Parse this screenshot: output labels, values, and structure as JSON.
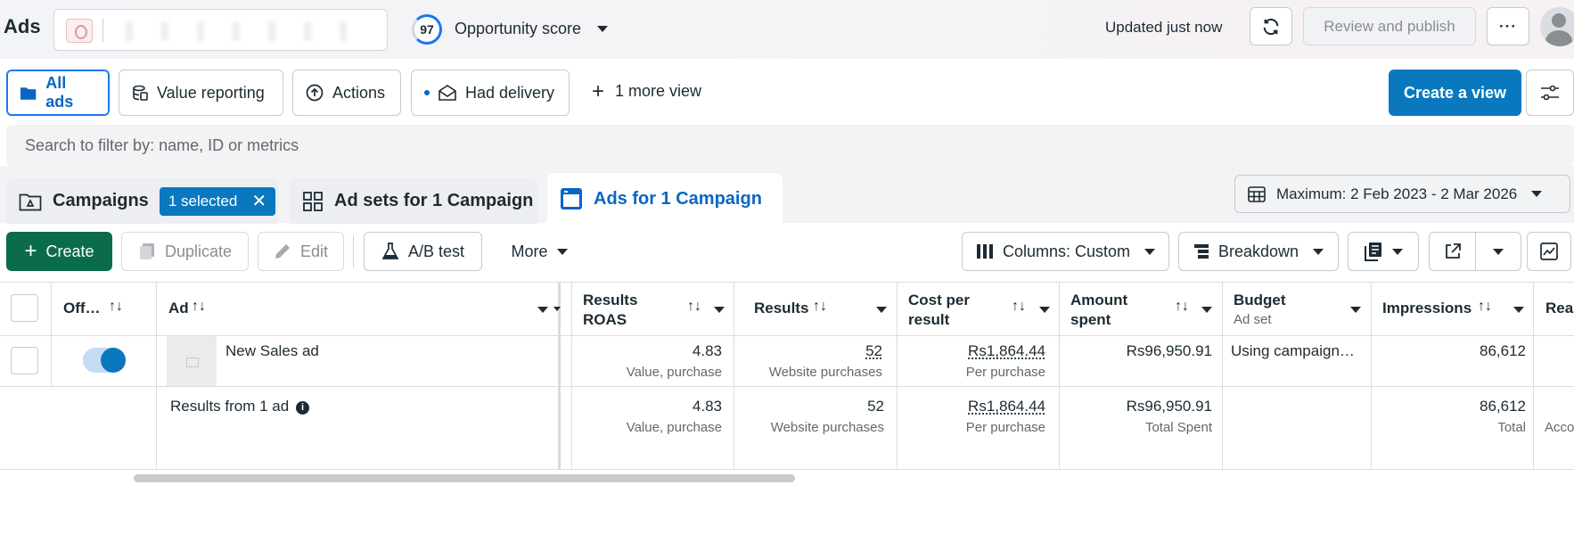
{
  "header": {
    "app_title": "Ads",
    "opportunity_score": "97",
    "opportunity_label": "Opportunity score",
    "updated": "Updated just now",
    "review_publish": "Review and publish",
    "more": "···"
  },
  "views": {
    "items": [
      "All ads",
      "Value reporting",
      "Actions",
      "Had delivery"
    ],
    "more_view": "1 more view",
    "create_view": "Create a view"
  },
  "search": {
    "placeholder": "Search to filter by: name, ID or metrics"
  },
  "levels": {
    "campaigns": "Campaigns",
    "selected_badge": "1 selected",
    "ad_sets": "Ad sets for 1 Campaign",
    "ads": "Ads for 1 Campaign"
  },
  "date_range": "Maximum: 2 Feb 2023 - 2 Mar 2026",
  "toolbar": {
    "create": "Create",
    "duplicate": "Duplicate",
    "edit": "Edit",
    "ab_test": "A/B test",
    "more": "More",
    "columns": "Columns: Custom",
    "breakdown": "Breakdown"
  },
  "table": {
    "headers": {
      "off_on": "Off…",
      "ad": "Ad",
      "results_roas_1": "Results",
      "results_roas_2": "ROAS",
      "results": "Results",
      "cost_per_result_1": "Cost per",
      "cost_per_result_2": "result",
      "amount_spent_1": "Amount",
      "amount_spent_2": "spent",
      "budget": "Budget",
      "budget_sub": "Ad set",
      "impressions": "Impressions",
      "reach": "Rea"
    },
    "row": {
      "ad_name": "New Sales ad",
      "roas": "4.83",
      "roas_sub": "Value, purchase",
      "results": "52",
      "results_sub": "Website purchases",
      "cost": "Rs1,864.44",
      "cost_sub": "Per purchase",
      "spent": "Rs96,950.91",
      "budget": "Using campaign…",
      "impressions": "86,612",
      "enabled": true
    },
    "summary": {
      "label": "Results from 1 ad",
      "roas": "4.83",
      "roas_sub": "Value, purchase",
      "results": "52",
      "results_sub": "Website purchases",
      "cost": "Rs1,864.44",
      "cost_sub": "Per purchase",
      "spent": "Rs96,950.91",
      "spent_sub": "Total Spent",
      "impressions": "86,612",
      "impressions_sub": "Total",
      "reach_sub": "Acco"
    }
  },
  "colors": {
    "accent": "#0a78be",
    "create_green": "#0b6b4d"
  }
}
